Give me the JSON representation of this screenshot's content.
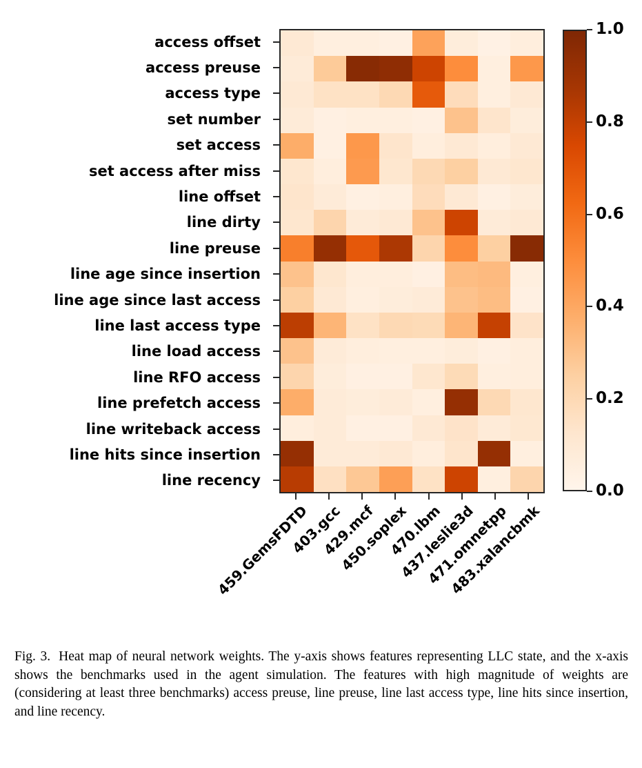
{
  "chart_data": {
    "type": "heatmap",
    "title": "",
    "xlabel": "",
    "ylabel": "",
    "rows": [
      "access offset",
      "access preuse",
      "access type",
      "set number",
      "set access",
      "set access after miss",
      "line offset",
      "line dirty",
      "line preuse",
      "line age since insertion",
      "line age since last access",
      "line last access type",
      "line load access",
      "line RFO access",
      "line prefetch access",
      "line writeback access",
      "line hits since insertion",
      "line recency"
    ],
    "columns": [
      "459.GemsFDTD",
      "403.gcc",
      "429.mcf",
      "450.soplex",
      "470.lbm",
      "437.leslie3d",
      "471.omnetpp",
      "483.xalancbmk"
    ],
    "values": [
      [
        0.1,
        0.05,
        0.05,
        0.04,
        0.42,
        0.07,
        0.03,
        0.06
      ],
      [
        0.08,
        0.27,
        0.97,
        0.95,
        0.78,
        0.5,
        0.05,
        0.46
      ],
      [
        0.1,
        0.15,
        0.15,
        0.2,
        0.68,
        0.18,
        0.05,
        0.1
      ],
      [
        0.08,
        0.04,
        0.05,
        0.05,
        0.04,
        0.3,
        0.13,
        0.07
      ],
      [
        0.38,
        0.04,
        0.46,
        0.13,
        0.06,
        0.1,
        0.06,
        0.1
      ],
      [
        0.12,
        0.06,
        0.45,
        0.12,
        0.2,
        0.25,
        0.1,
        0.12
      ],
      [
        0.13,
        0.08,
        0.04,
        0.05,
        0.18,
        0.1,
        0.04,
        0.07
      ],
      [
        0.12,
        0.22,
        0.08,
        0.1,
        0.3,
        0.78,
        0.08,
        0.1
      ],
      [
        0.55,
        0.93,
        0.69,
        0.86,
        0.22,
        0.5,
        0.25,
        0.97
      ],
      [
        0.3,
        0.12,
        0.06,
        0.06,
        0.04,
        0.32,
        0.33,
        0.05
      ],
      [
        0.25,
        0.1,
        0.05,
        0.07,
        0.08,
        0.3,
        0.32,
        0.04
      ],
      [
        0.82,
        0.35,
        0.15,
        0.2,
        0.19,
        0.35,
        0.8,
        0.14
      ],
      [
        0.3,
        0.08,
        0.06,
        0.05,
        0.05,
        0.07,
        0.04,
        0.06
      ],
      [
        0.22,
        0.07,
        0.04,
        0.04,
        0.12,
        0.19,
        0.05,
        0.06
      ],
      [
        0.38,
        0.08,
        0.07,
        0.08,
        0.05,
        0.93,
        0.2,
        0.12
      ],
      [
        0.06,
        0.08,
        0.04,
        0.04,
        0.1,
        0.14,
        0.08,
        0.11
      ],
      [
        0.93,
        0.08,
        0.08,
        0.1,
        0.06,
        0.13,
        0.93,
        0.05
      ],
      [
        0.83,
        0.16,
        0.28,
        0.43,
        0.15,
        0.78,
        0.05,
        0.22
      ]
    ],
    "colorbar": {
      "min": 0.0,
      "max": 1.0,
      "tick_labels": [
        "1.0",
        "0.8",
        "0.6",
        "0.4",
        "0.2",
        "0.0"
      ],
      "tick_values": [
        1.0,
        0.8,
        0.6,
        0.4,
        0.2,
        0.0
      ]
    },
    "colormap": {
      "name": "Oranges",
      "anchors": [
        {
          "t": 0.0,
          "color": "#fff5eb"
        },
        {
          "t": 0.125,
          "color": "#fee6ce"
        },
        {
          "t": 0.25,
          "color": "#fdd0a2"
        },
        {
          "t": 0.375,
          "color": "#fdae6b"
        },
        {
          "t": 0.5,
          "color": "#fd8d3c"
        },
        {
          "t": 0.625,
          "color": "#f16913"
        },
        {
          "t": 0.75,
          "color": "#d94801"
        },
        {
          "t": 0.875,
          "color": "#a63603"
        },
        {
          "t": 1.0,
          "color": "#7f2704"
        }
      ]
    },
    "grid": false,
    "legend_position": "right-colorbar",
    "frame_color": "#262626"
  },
  "caption": {
    "label": "Fig. 3.",
    "text": "Heat map of neural network weights. The y-axis shows features representing LLC state, and the x-axis shows the benchmarks used in the agent simulation. The features with high magnitude of weights are (considering at least three benchmarks) access preuse, line preuse, line last access type, line hits since insertion, and line recency."
  }
}
